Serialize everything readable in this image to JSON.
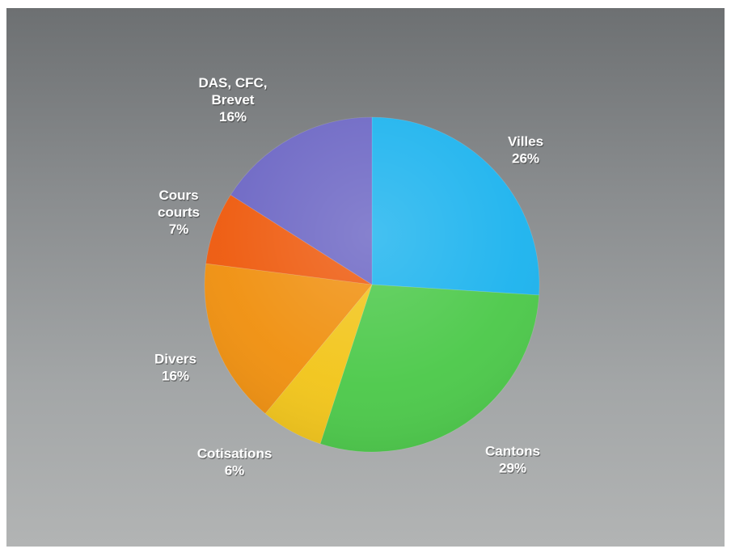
{
  "chart_data": {
    "type": "pie",
    "title": "",
    "start_angle_deg": 0,
    "direction": "clockwise",
    "slices": [
      {
        "name_lines": [
          "Villes"
        ],
        "percent_label": "26%",
        "value": 26,
        "color": "#1cb3ee"
      },
      {
        "name_lines": [
          "Cantons"
        ],
        "percent_label": "29%",
        "value": 29,
        "color": "#4cc94a"
      },
      {
        "name_lines": [
          "Cotisations"
        ],
        "percent_label": "6%",
        "value": 6,
        "color": "#f2c51a"
      },
      {
        "name_lines": [
          "Divers"
        ],
        "percent_label": "16%",
        "value": 16,
        "color": "#f0900f"
      },
      {
        "name_lines": [
          "Cours",
          "courts"
        ],
        "percent_label": "7%",
        "value": 7,
        "color": "#ee5a0d"
      },
      {
        "name_lines": [
          "DAS, CFC,",
          "Brevet"
        ],
        "percent_label": "16%",
        "value": 16,
        "color": "#6c66c4"
      }
    ]
  }
}
